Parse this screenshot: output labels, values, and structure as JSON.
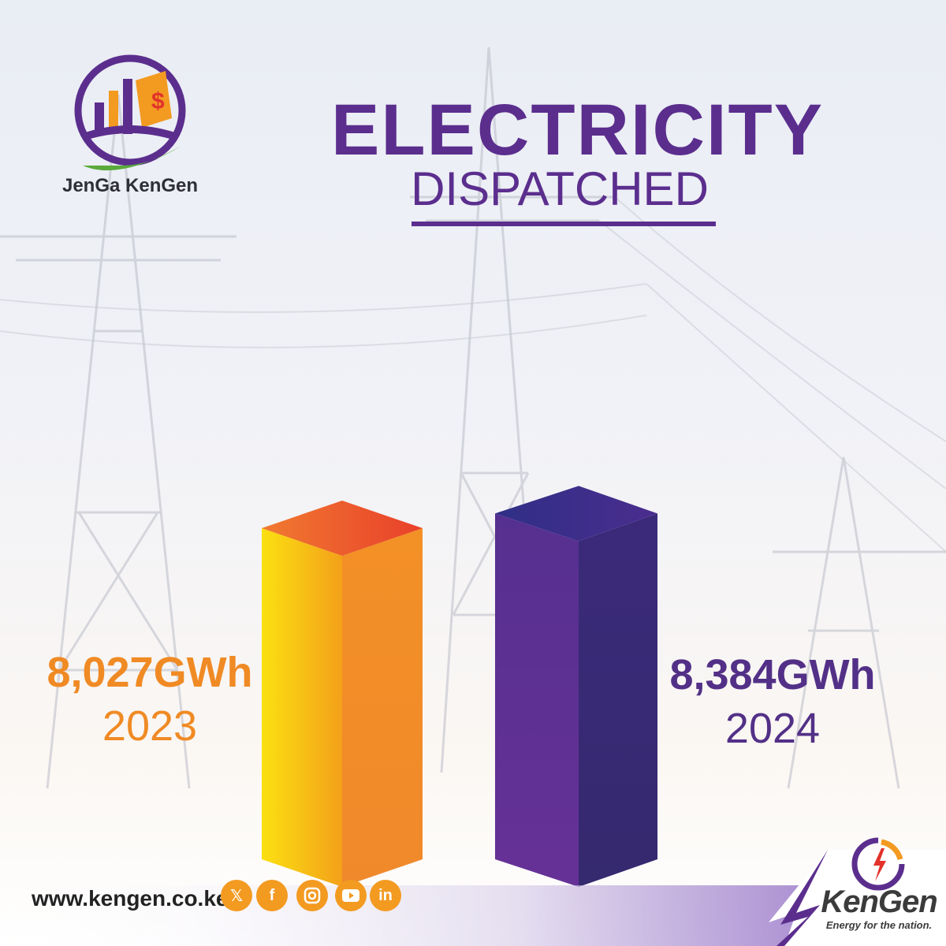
{
  "brand": {
    "campaign_name": "JenGa KenGen",
    "company_name": "KenGen",
    "tagline": "Energy for the nation."
  },
  "header": {
    "title_line1": "ELECTRICITY",
    "title_line2": "DISPATCHED"
  },
  "chart_data": {
    "type": "bar",
    "style": "3d-columns",
    "title": "ELECTRICITY DISPATCHED",
    "categories": [
      "2023",
      "2024"
    ],
    "values": [
      8027,
      8384
    ],
    "unit": "GWh",
    "data_labels": [
      "8,027GWh",
      "8,384GWh"
    ],
    "colors": [
      "#f39a21",
      "#5b2e8e"
    ],
    "grid": false,
    "legend": "none"
  },
  "footer": {
    "website": "www.kengen.co.ke",
    "social_icons": [
      "x-icon",
      "facebook-icon",
      "instagram-icon",
      "youtube-icon",
      "linkedin-icon"
    ]
  },
  "colors": {
    "purple": "#5b2e8e",
    "orange": "#f39a21",
    "green": "#5aaa3c",
    "red": "#e2322b"
  }
}
